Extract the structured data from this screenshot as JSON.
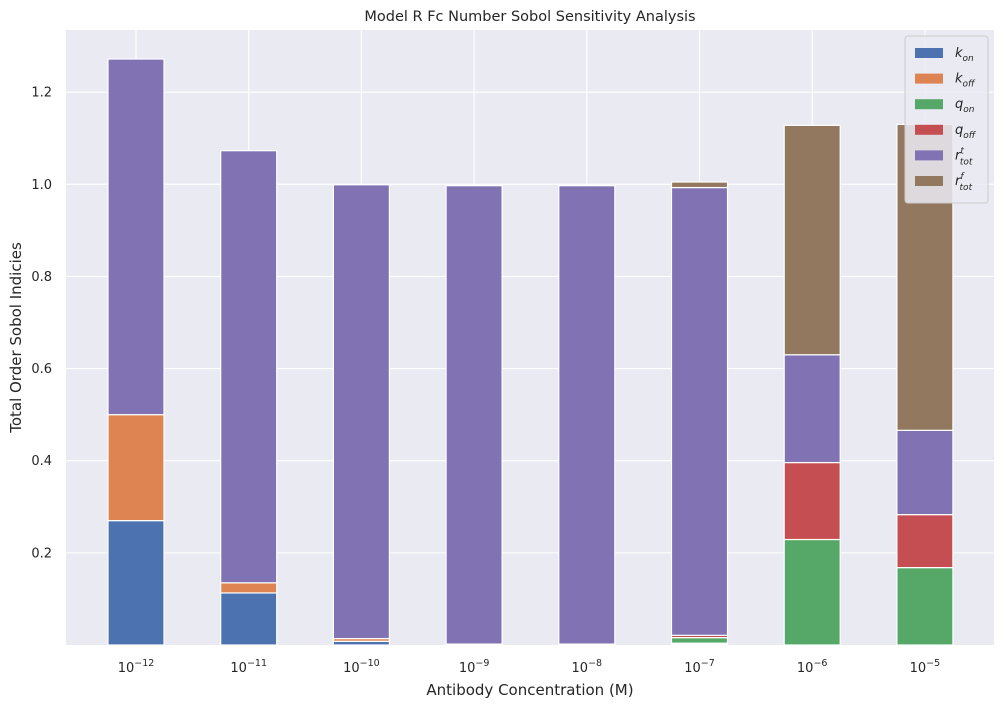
{
  "chart_data": {
    "type": "bar",
    "stacked": true,
    "title": "Model R Fc Number Sobol Sensitivity Analysis",
    "xlabel": "Antibody Concentration (M)",
    "ylabel": "Total Order Sobol Indicies",
    "ylim": [
      0,
      1.335
    ],
    "yticks": [
      0.2,
      0.4,
      0.6,
      0.8,
      1.0,
      1.2
    ],
    "grid": true,
    "legend_position": "top-right",
    "categories": [
      {
        "base": "10",
        "exp": "−12"
      },
      {
        "base": "10",
        "exp": "−11"
      },
      {
        "base": "10",
        "exp": "−10"
      },
      {
        "base": "10",
        "exp": "−9"
      },
      {
        "base": "10",
        "exp": "−8"
      },
      {
        "base": "10",
        "exp": "−7"
      },
      {
        "base": "10",
        "exp": "−6"
      },
      {
        "base": "10",
        "exp": "−5"
      }
    ],
    "series": [
      {
        "main": "k",
        "sub": "on",
        "sup": "",
        "color": "#4C72B0",
        "values": [
          0.27,
          0.113,
          0.008,
          0.001,
          0.001,
          0.002,
          0.0,
          0.0
        ]
      },
      {
        "main": "k",
        "sub": "off",
        "sup": "",
        "color": "#DD8452",
        "values": [
          0.23,
          0.022,
          0.006,
          0.001,
          0.001,
          0.002,
          0.0,
          0.0
        ]
      },
      {
        "main": "q",
        "sub": "on",
        "sup": "",
        "color": "#55A868",
        "values": [
          0.0,
          0.0,
          0.0,
          0.0,
          0.0,
          0.012,
          0.229,
          0.168
        ]
      },
      {
        "main": "q",
        "sub": "off",
        "sup": "",
        "color": "#C44E52",
        "values": [
          0.0,
          0.0,
          0.0,
          0.0,
          0.0,
          0.005,
          0.167,
          0.115
        ]
      },
      {
        "main": "r",
        "sub": "tot",
        "sup": "t",
        "color": "#8172B3",
        "values": [
          0.772,
          0.938,
          0.985,
          0.995,
          0.995,
          0.972,
          0.234,
          0.183
        ]
      },
      {
        "main": "r",
        "sub": "tot",
        "sup": "f",
        "color": "#937860",
        "values": [
          0.0,
          0.0,
          0.0,
          0.0,
          0.0,
          0.012,
          0.498,
          0.664
        ]
      }
    ]
  }
}
